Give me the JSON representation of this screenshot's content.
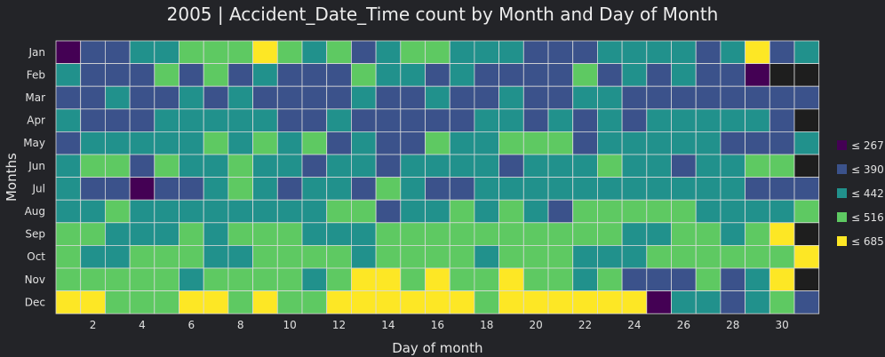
{
  "chart_data": {
    "type": "heatmap",
    "title": "2005 | Accident_Date_Time count by Month and Day of Month",
    "xlabel": "Day of month",
    "ylabel": "Months",
    "months": [
      "Jan",
      "Feb",
      "Mar",
      "Apr",
      "May",
      "Jun",
      "Jul",
      "Aug",
      "Sep",
      "Oct",
      "Nov",
      "Dec"
    ],
    "days": [
      1,
      2,
      3,
      4,
      5,
      6,
      7,
      8,
      9,
      10,
      11,
      12,
      13,
      14,
      15,
      16,
      17,
      18,
      19,
      20,
      21,
      22,
      23,
      24,
      25,
      26,
      27,
      28,
      29,
      30,
      31
    ],
    "x_tick_labels": [
      "2",
      "4",
      "6",
      "8",
      "10",
      "12",
      "14",
      "16",
      "18",
      "20",
      "22",
      "24",
      "26",
      "28",
      "30"
    ],
    "bins": [
      {
        "label": "≤ 267",
        "color": "#440154"
      },
      {
        "label": "≤ 390",
        "color": "#3b528b"
      },
      {
        "label": "≤ 442",
        "color": "#21918c"
      },
      {
        "label": "≤ 516",
        "color": "#5ec962"
      },
      {
        "label": "≤ 685",
        "color": "#fde725"
      }
    ],
    "missing_color": "#1e1e1e",
    "bin_index_grid": [
      [
        0,
        1,
        1,
        2,
        2,
        3,
        3,
        3,
        4,
        3,
        2,
        3,
        1,
        2,
        3,
        3,
        2,
        2,
        2,
        1,
        1,
        1,
        2,
        2,
        2,
        2,
        1,
        2,
        4,
        1,
        2
      ],
      [
        2,
        1,
        1,
        1,
        3,
        1,
        3,
        1,
        2,
        1,
        1,
        1,
        3,
        2,
        2,
        1,
        2,
        1,
        1,
        1,
        1,
        3,
        1,
        2,
        1,
        2,
        1,
        1,
        0,
        -1,
        -1
      ],
      [
        1,
        1,
        2,
        1,
        1,
        2,
        1,
        2,
        1,
        1,
        1,
        1,
        2,
        1,
        1,
        2,
        1,
        1,
        2,
        1,
        1,
        2,
        2,
        1,
        1,
        1,
        1,
        1,
        1,
        1,
        1
      ],
      [
        2,
        1,
        1,
        1,
        2,
        2,
        2,
        2,
        2,
        1,
        1,
        2,
        1,
        1,
        1,
        1,
        1,
        2,
        2,
        1,
        2,
        1,
        2,
        1,
        2,
        2,
        2,
        2,
        2,
        1,
        -1
      ],
      [
        1,
        2,
        2,
        2,
        2,
        2,
        3,
        2,
        3,
        2,
        3,
        1,
        2,
        1,
        1,
        3,
        2,
        2,
        3,
        3,
        3,
        1,
        2,
        2,
        2,
        2,
        2,
        1,
        1,
        1,
        2
      ],
      [
        2,
        3,
        3,
        1,
        3,
        2,
        2,
        3,
        2,
        2,
        1,
        2,
        2,
        1,
        2,
        2,
        2,
        2,
        1,
        2,
        2,
        2,
        3,
        2,
        2,
        1,
        2,
        2,
        3,
        3,
        -1
      ],
      [
        2,
        1,
        1,
        0,
        1,
        1,
        2,
        3,
        2,
        1,
        2,
        2,
        1,
        3,
        2,
        1,
        1,
        2,
        2,
        2,
        2,
        2,
        2,
        2,
        2,
        2,
        2,
        2,
        1,
        1,
        1
      ],
      [
        2,
        2,
        3,
        2,
        2,
        2,
        2,
        2,
        2,
        2,
        2,
        3,
        3,
        1,
        2,
        2,
        3,
        2,
        3,
        2,
        1,
        3,
        3,
        3,
        3,
        3,
        2,
        2,
        2,
        2,
        3
      ],
      [
        3,
        3,
        2,
        2,
        2,
        3,
        2,
        3,
        3,
        3,
        2,
        2,
        2,
        3,
        3,
        3,
        3,
        3,
        3,
        3,
        3,
        3,
        3,
        2,
        2,
        3,
        3,
        2,
        3,
        4,
        -1
      ],
      [
        3,
        2,
        2,
        3,
        3,
        3,
        2,
        2,
        3,
        3,
        3,
        3,
        2,
        3,
        3,
        3,
        3,
        2,
        3,
        3,
        3,
        2,
        2,
        2,
        3,
        3,
        3,
        3,
        3,
        3,
        4
      ],
      [
        3,
        3,
        3,
        3,
        3,
        2,
        3,
        3,
        3,
        3,
        2,
        3,
        4,
        4,
        3,
        4,
        3,
        3,
        4,
        3,
        3,
        2,
        3,
        1,
        1,
        1,
        3,
        1,
        2,
        4,
        -1
      ],
      [
        4,
        4,
        3,
        3,
        3,
        4,
        4,
        3,
        4,
        3,
        3,
        4,
        4,
        4,
        4,
        4,
        4,
        3,
        4,
        4,
        4,
        4,
        4,
        4,
        0,
        2,
        2,
        1,
        2,
        3,
        1
      ]
    ]
  }
}
